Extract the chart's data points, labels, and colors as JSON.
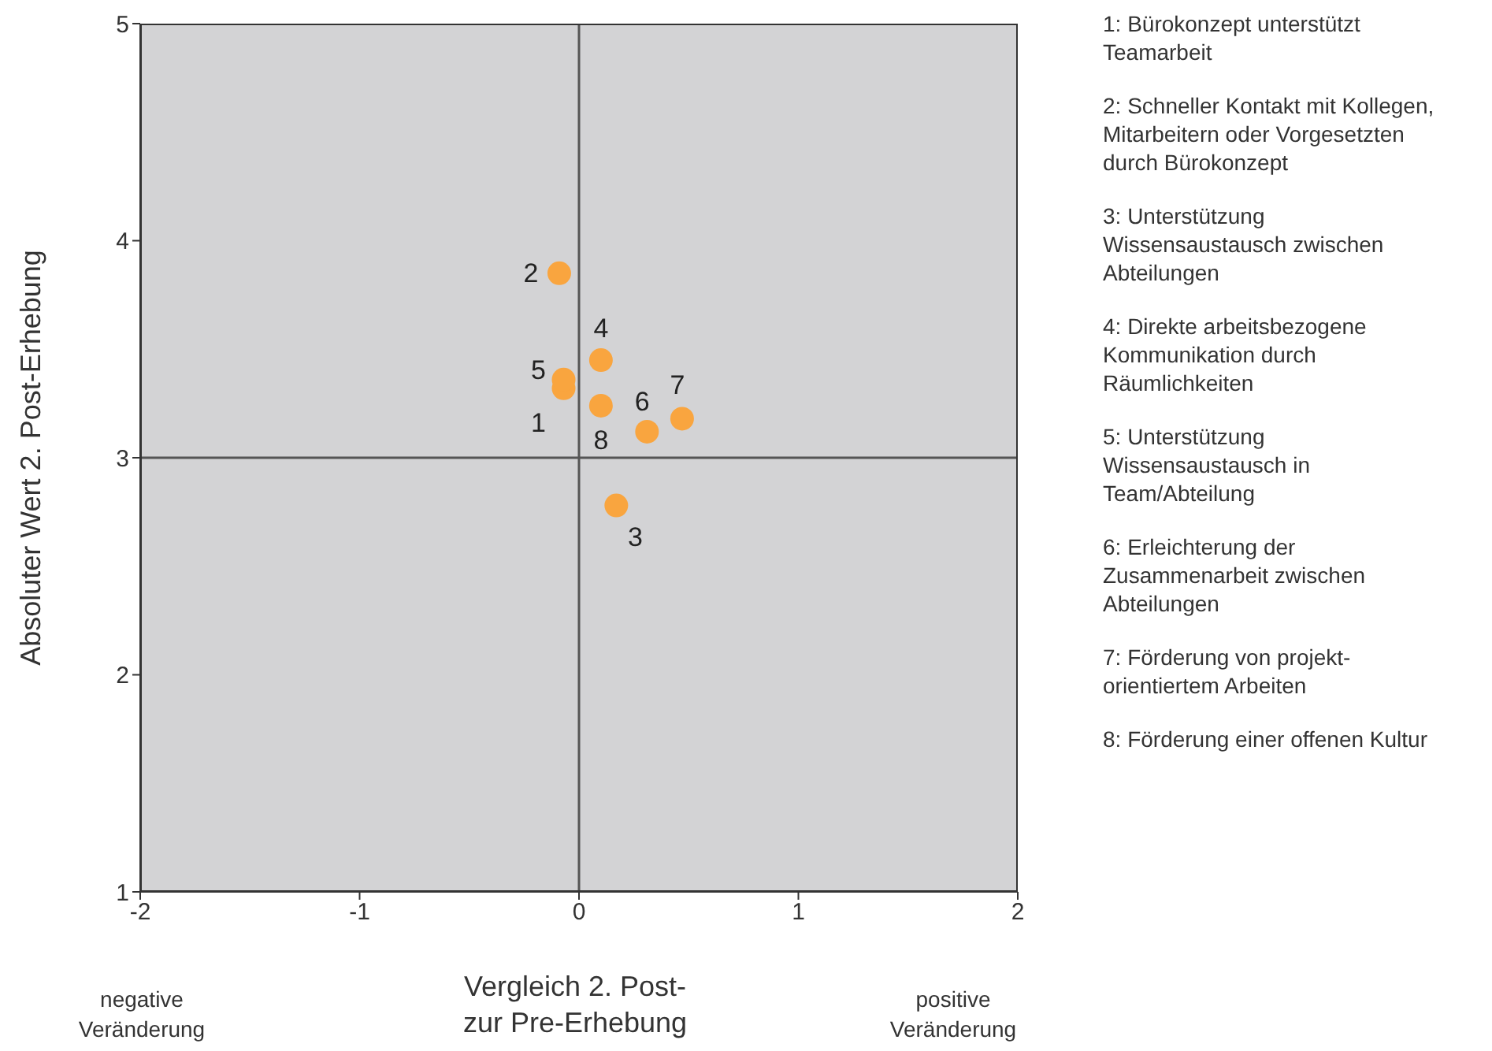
{
  "chart_data": {
    "type": "scatter",
    "xlabel": "Vergleich 2. Post-zur Pre-Erhebung",
    "ylabel": "Absoluter Wert 2. Post-Erhebung",
    "x": [
      -0.07,
      -0.09,
      0.17,
      0.1,
      -0.07,
      0.31,
      0.47,
      0.1
    ],
    "series": [
      {
        "color": "#f9a53f",
        "values": [
          3.32,
          3.85,
          2.78,
          3.45,
          3.36,
          3.12,
          3.18,
          3.24
        ]
      }
    ],
    "xlim": [
      -2,
      2
    ],
    "xticks": [
      -2,
      -1,
      0,
      1,
      2
    ],
    "ylim": [
      1,
      5
    ],
    "yticks": [
      1,
      2,
      3,
      4,
      5
    ],
    "ref_lines": [
      {
        "axis": "x",
        "value": 0,
        "color": "#555555"
      },
      {
        "axis": "y",
        "value": 3,
        "color": "#555555"
      }
    ],
    "grid": false,
    "legend": false,
    "marker": "circle",
    "annotations": [
      "negative Veränderung",
      "positive Veränderung",
      "1: Bürokonzept unterstützt Teamarbeit",
      "2: Schneller Kontakt mit Kollegen, Mitarbeitern oder Vorgesetzten durch Bürokonzept",
      "3: Unterstützung Wissensaustausch zwischen Abteilungen",
      "4: Direkte arbeitsbezogene Kommunikation durch Räumlichkeiten",
      "5: Unterstützung Wissensaustausch in Team/Abteilung",
      "6: Erleichterung der Zusammenarbeit zwischen Abteilungen",
      "7: Förderung von projekt-orientiertem Arbeiten",
      "8: Förderung einer offenen Kultur",
      {
        "text": "1",
        "x": -0.07,
        "y": 3.32
      },
      {
        "text": "2",
        "x": -0.09,
        "y": 3.85
      },
      {
        "text": "3",
        "x": 0.17,
        "y": 2.78
      },
      {
        "text": "4",
        "x": 0.1,
        "y": 3.45
      },
      {
        "text": "5",
        "x": -0.07,
        "y": 3.36
      },
      {
        "text": "6",
        "x": 0.31,
        "y": 3.12
      },
      {
        "text": "7",
        "x": 0.47,
        "y": 3.18
      },
      {
        "text": "8",
        "x": 0.1,
        "y": 3.24
      }
    ]
  }
}
